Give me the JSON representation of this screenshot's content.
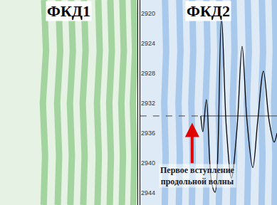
{
  "chart_data": [
    {
      "type": "line",
      "title": "ФКД1",
      "xlim": [
        0,
        100
      ],
      "ylim": [
        2945.6,
        2918.2
      ],
      "tick_labels": false,
      "grid": false,
      "color": "#a3d39e",
      "series": [
        {
          "type": "band",
          "x": [
            32.1,
            33.5,
            31.2,
            32.8,
            31.8
          ],
          "y": [
            2918.2,
            2925,
            2932,
            2939,
            2945.6
          ]
        },
        {
          "type": "band",
          "x": [
            42.5,
            43.8,
            41.6,
            43.0,
            42.0
          ],
          "y": [
            2918.2,
            2925,
            2932,
            2939,
            2945.6
          ]
        },
        {
          "type": "band",
          "x": [
            51.8,
            53.0,
            50.9,
            52.3,
            51.2
          ],
          "y": [
            2918.2,
            2925,
            2932,
            2939,
            2945.6
          ]
        },
        {
          "type": "band",
          "x": [
            61.1,
            62.3,
            60.2,
            61.6,
            60.6
          ],
          "y": [
            2918.2,
            2925,
            2932,
            2939,
            2945.6
          ]
        },
        {
          "type": "band",
          "x": [
            71.5,
            72.6,
            70.6,
            71.9,
            71.0
          ],
          "y": [
            2918.2,
            2925,
            2932,
            2939,
            2945.6
          ]
        },
        {
          "type": "band",
          "x": [
            80.3,
            81.4,
            79.5,
            80.7,
            79.9
          ],
          "y": [
            2918.2,
            2925,
            2932,
            2939,
            2945.6
          ]
        },
        {
          "type": "band",
          "x": [
            89.1,
            90.1,
            88.3,
            89.5,
            88.7
          ],
          "y": [
            2918.2,
            2925,
            2932,
            2939,
            2945.6
          ]
        },
        {
          "type": "band",
          "x": [
            97.4,
            98.3,
            96.7,
            97.8,
            97.1
          ],
          "y": [
            2918.2,
            2925,
            2932,
            2939,
            2945.6
          ]
        }
      ]
    },
    {
      "type": "line",
      "title": "ФКД2",
      "xlim": [
        0,
        100
      ],
      "ylim": [
        2945.6,
        2918.2
      ],
      "yticks": [
        2920,
        2924,
        2928,
        2932,
        2936,
        2940,
        2944
      ],
      "tick_labels": "y",
      "grid": false,
      "color": "#a9c9ec",
      "series": [
        {
          "type": "band",
          "x": [
            18.2,
            19.0,
            17.6,
            18.6,
            18.0
          ],
          "y": [
            2918.2,
            2925,
            2932,
            2939,
            2945.6
          ]
        },
        {
          "type": "band",
          "x": [
            28.6,
            29.4,
            28.0,
            29.0,
            28.3
          ],
          "y": [
            2918.2,
            2925,
            2932,
            2939,
            2945.6
          ]
        },
        {
          "type": "band",
          "x": [
            38.0,
            38.8,
            37.4,
            38.4,
            37.8
          ],
          "y": [
            2918.2,
            2925,
            2932,
            2939,
            2945.6
          ]
        },
        {
          "type": "band",
          "x": [
            48.4,
            49.2,
            47.8,
            48.8,
            48.1
          ],
          "y": [
            2918.2,
            2925,
            2932,
            2939,
            2945.6
          ]
        },
        {
          "type": "band",
          "x": [
            57.8,
            58.6,
            57.2,
            58.2,
            57.5
          ],
          "y": [
            2918.2,
            2925,
            2932,
            2939,
            2945.6
          ]
        },
        {
          "type": "band",
          "x": [
            68.2,
            69.0,
            67.6,
            68.6,
            67.9
          ],
          "y": [
            2918.2,
            2925,
            2932,
            2939,
            2945.6
          ]
        },
        {
          "type": "band",
          "x": [
            78.6,
            79.4,
            78.0,
            79.0,
            78.3
          ],
          "y": [
            2918.2,
            2925,
            2932,
            2939,
            2945.6
          ]
        },
        {
          "type": "band",
          "x": [
            89.0,
            89.8,
            88.4,
            89.4,
            88.7
          ],
          "y": [
            2918.2,
            2925,
            2932,
            2939,
            2945.6
          ]
        },
        {
          "type": "band",
          "x": [
            98.4,
            99.1,
            97.9,
            98.8,
            98.2
          ],
          "y": [
            2918.2,
            2925,
            2932,
            2939,
            2945.6
          ]
        },
        {
          "type": "line",
          "color": "#444444",
          "line_style": "dashed",
          "x": [
            0,
            44.3
          ],
          "y": [
            2933.7,
            2933.7
          ]
        },
        {
          "type": "line",
          "color": "#444444",
          "line_style": "solid",
          "x": [
            44.3,
            100
          ],
          "y": [
            2933.7,
            2933.7
          ]
        },
        {
          "type": "line",
          "color": "#000000",
          "line_style": "spline",
          "x": [
            44.3,
            45.8,
            48.4,
            52.1,
            54.7,
            59.4,
            63.0,
            66.7,
            70.8,
            74.5,
            78.1,
            82.3,
            85.9,
            90.1,
            94.3,
            97.9,
            100
          ],
          "y": [
            2933.7,
            2935.8,
            2931.5,
            2942.5,
            2943.9,
            2920.6,
            2935.3,
            2942.0,
            2935.3,
            2924.4,
            2934.4,
            2940.6,
            2934.4,
            2927.7,
            2934.4,
            2937.2,
            2936.0
          ]
        }
      ],
      "annotations": [
        {
          "text": [
            "Первое вступление",
            "продольной волны"
          ],
          "x": 42.2,
          "y": 2941.7,
          "arrow_x": 38.0,
          "arrow_y": 2934.6,
          "color": "#e00000"
        }
      ]
    }
  ]
}
